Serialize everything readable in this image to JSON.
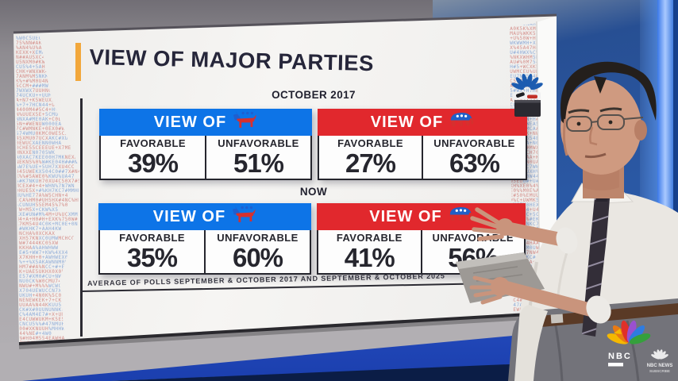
{
  "screen_graphic": {
    "accent_color": "#f2a73b"
  },
  "chart_data": {
    "type": "table",
    "title": "VIEW OF MAJOR PARTIES",
    "header_label": "VIEW OF",
    "stat_labels": [
      "FAVORABLE",
      "UNFAVORABLE"
    ],
    "groups": [
      {
        "period": "OCTOBER 2017",
        "panels": [
          {
            "party": "Democratic Party",
            "icon": "democratic-donkey-icon",
            "color": "#0d74e7",
            "favorable": "39%",
            "unfavorable": "51%"
          },
          {
            "party": "Republican Party",
            "icon": "republican-elephant-icon",
            "color": "#e1282d",
            "favorable": "27%",
            "unfavorable": "63%"
          }
        ]
      },
      {
        "period": "NOW",
        "panels": [
          {
            "party": "Democratic Party",
            "icon": "democratic-donkey-icon",
            "color": "#0d74e7",
            "favorable": "35%",
            "unfavorable": "60%"
          },
          {
            "party": "Republican Party",
            "icon": "republican-elephant-icon",
            "color": "#e1282d",
            "favorable": "41%",
            "unfavorable": "56%"
          }
        ]
      }
    ],
    "footnote": "AVERAGE OF POLLS SEPTEMBER & OCTOBER 2017 AND SEPTEMBER & OCTOBER 2025"
  },
  "watermarks": {
    "nbc_label": "NBC",
    "nbc_news_line1": "NBC NEWS",
    "nbc_news_line2": "SUBSCRIBE"
  }
}
